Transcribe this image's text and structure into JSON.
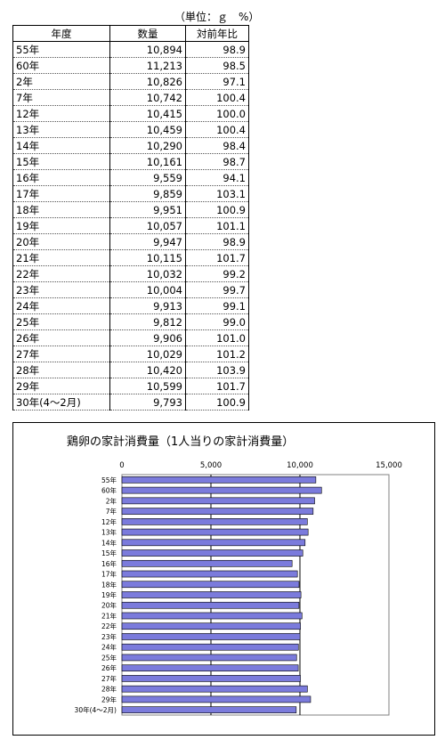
{
  "unit_label": "（単位：ｇ　%）",
  "table": {
    "headers": [
      "年度",
      "数量",
      "対前年比"
    ],
    "rows": [
      [
        "55年",
        "10,894",
        "98.9"
      ],
      [
        "60年",
        "11,213",
        "98.5"
      ],
      [
        "2年",
        "10,826",
        "97.1"
      ],
      [
        "7年",
        "10,742",
        "100.4"
      ],
      [
        "12年",
        "10,415",
        "100.0"
      ],
      [
        "13年",
        "10,459",
        "100.4"
      ],
      [
        "14年",
        "10,290",
        "98.4"
      ],
      [
        "15年",
        "10,161",
        "98.7"
      ],
      [
        "16年",
        "9,559",
        "94.1"
      ],
      [
        "17年",
        "9,859",
        "103.1"
      ],
      [
        "18年",
        "9,951",
        "100.9"
      ],
      [
        "19年",
        "10,057",
        "101.1"
      ],
      [
        "20年",
        "9,947",
        "98.9"
      ],
      [
        "21年",
        "10,115",
        "101.7"
      ],
      [
        "22年",
        "10,032",
        "99.2"
      ],
      [
        "23年",
        "10,004",
        "99.7"
      ],
      [
        "24年",
        "9,913",
        "99.1"
      ],
      [
        "25年",
        "9,812",
        "99.0"
      ],
      [
        "26年",
        "9,906",
        "101.0"
      ],
      [
        "27年",
        "10,029",
        "101.2"
      ],
      [
        "28年",
        "10,420",
        "103.9"
      ],
      [
        "29年",
        "10,599",
        "101.7"
      ],
      [
        "30年(4～2月)",
        "9,793",
        "100.9"
      ]
    ]
  },
  "chart_data": {
    "type": "bar",
    "orientation": "horizontal",
    "title": "鶏卵の家計消費量（1人当りの家計消費量）",
    "categories": [
      "55年",
      "60年",
      "2年",
      "7年",
      "12年",
      "13年",
      "14年",
      "15年",
      "16年",
      "17年",
      "18年",
      "19年",
      "20年",
      "21年",
      "22年",
      "23年",
      "24年",
      "25年",
      "26年",
      "27年",
      "28年",
      "29年",
      "30年(4～2月)"
    ],
    "values": [
      10894,
      11213,
      10826,
      10742,
      10415,
      10459,
      10290,
      10161,
      9559,
      9859,
      9951,
      10057,
      9947,
      10115,
      10032,
      10004,
      9913,
      9812,
      9906,
      10029,
      10420,
      10599,
      9793
    ],
    "xlim": [
      0,
      15000
    ],
    "xticks": [
      "0",
      "5,000",
      "10,000",
      "15,000"
    ],
    "tick_values": [
      0,
      5000,
      10000,
      15000
    ],
    "bar_color": "#7b7bdc",
    "grid": true
  }
}
